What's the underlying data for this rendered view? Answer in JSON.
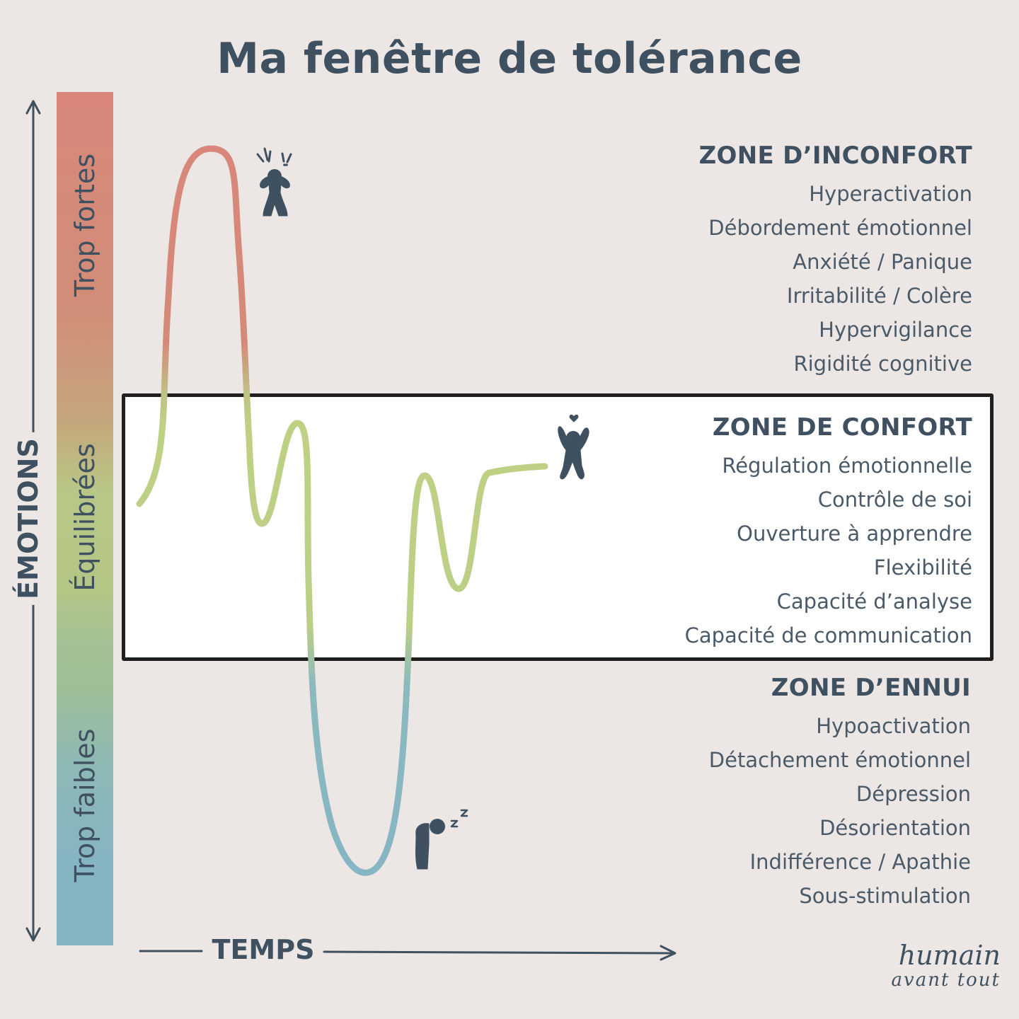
{
  "title": "Ma fenêtre de tolérance",
  "axes": {
    "y_label": "ÉMOTIONS",
    "x_label": "TEMPS"
  },
  "bar_labels": {
    "top": "Trop fortes",
    "middle": "Équilibrées",
    "bottom": "Trop faibles"
  },
  "zones": {
    "inconfort": {
      "title": "ZONE D’INCONFORT",
      "items": [
        "Hyperactivation",
        "Débordement émotionnel",
        "Anxiété / Panique",
        "Irritabilité / Colère",
        "Hypervigilance",
        "Rigidité cognitive"
      ]
    },
    "confort": {
      "title": "ZONE DE CONFORT",
      "items": [
        "Régulation émotionnelle",
        "Contrôle de soi",
        "Ouverture à apprendre",
        "Flexibilité",
        "Capacité d’analyse",
        "Capacité de communication"
      ]
    },
    "ennui": {
      "title": "ZONE D’ENNUI",
      "items": [
        "Hypoactivation",
        "Détachement émotionnel",
        "Dépression",
        "Désorientation",
        "Indifférence / Apathie",
        "Sous-stimulation"
      ]
    }
  },
  "icons": [
    "stressed-person-icon",
    "happy-person-icon",
    "sleeping-person-icon"
  ],
  "brand": {
    "line1": "humain",
    "line2": "avant tout"
  },
  "colors": {
    "background": "#ece7e5",
    "text": "#3f5160",
    "too_strong": "#d9877a",
    "balanced": "#b8c787",
    "too_weak": "#85b5c2",
    "window_border": "#1f1f1f"
  }
}
